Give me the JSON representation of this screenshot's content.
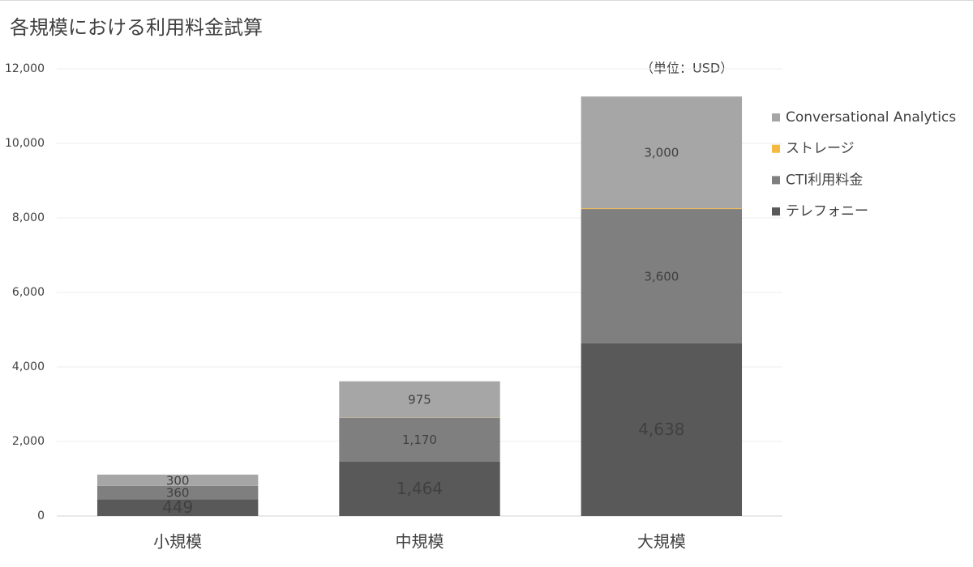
{
  "chart_data": {
    "type": "stacked_bar",
    "title": "各規模における利用料金試算",
    "annotation": "（単位：USD）",
    "categories": [
      "小規模",
      "中規模",
      "大規模"
    ],
    "series": [
      {
        "name": "テレフォニー",
        "color": "#595959",
        "values": [
          449,
          1464,
          4638
        ],
        "value_labels": [
          "449",
          "1,464",
          "4,638"
        ]
      },
      {
        "name": "CTI利用料金",
        "color": "#7f7f7f",
        "values": [
          360,
          1170,
          3600
        ],
        "value_labels": [
          "360",
          "1,170",
          "3,600"
        ]
      },
      {
        "name": "ストレージ",
        "color": "#f4b942",
        "values": [
          1,
          5,
          20
        ]
      },
      {
        "name": "Conversational Analytics",
        "color": "#a6a6a6",
        "values": [
          300,
          975,
          3000
        ],
        "value_labels": [
          "300",
          "975",
          "3,000"
        ]
      }
    ],
    "ylim": [
      0,
      12000
    ],
    "yticks": [
      0,
      {
        "value": 2000,
        "label": "2,000"
      },
      {
        "value": 4000,
        "label": "4,000"
      },
      {
        "value": 6000,
        "label": "6,000"
      },
      {
        "value": 8000,
        "label": "8,000"
      },
      {
        "value": 10000,
        "label": "10,000"
      },
      {
        "value": 12000,
        "label": "12,000"
      }
    ],
    "grid": true,
    "legend": "right"
  }
}
